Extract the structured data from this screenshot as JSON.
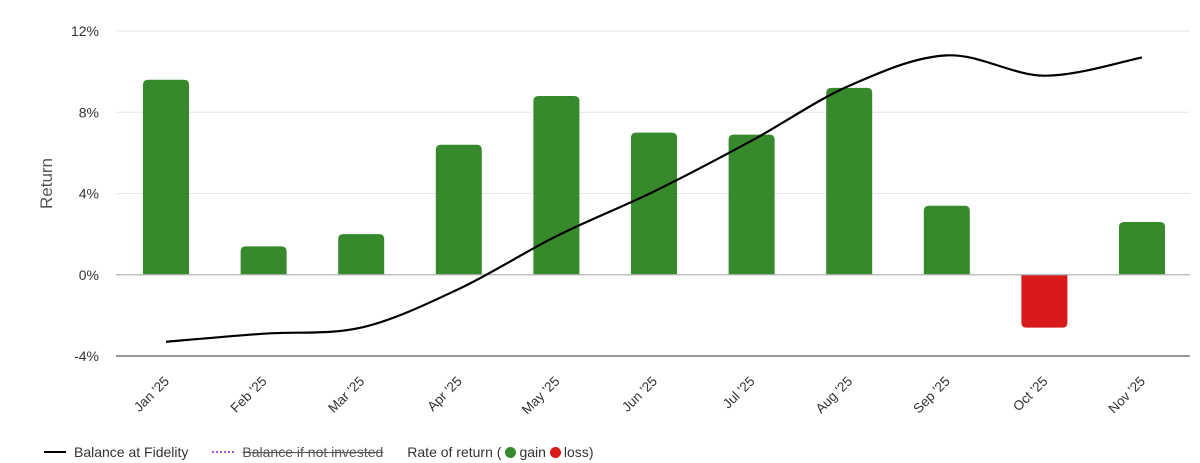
{
  "chart_data": {
    "type": "bar",
    "categories": [
      "Jan '25",
      "Feb '25",
      "Mar '25",
      "Apr '25",
      "May '25",
      "Jun '25",
      "Jul '25",
      "Aug '25",
      "Sep '25",
      "Oct '25",
      "Nov '25"
    ],
    "series": [
      {
        "name": "Rate of return",
        "values": [
          9.6,
          1.4,
          2.0,
          6.4,
          8.8,
          7.0,
          6.9,
          9.2,
          3.4,
          -2.6,
          2.6
        ]
      }
    ],
    "balance_line": {
      "name": "Balance at Fidelity",
      "values": [
        -3.3,
        -2.9,
        -2.6,
        -0.7,
        1.9,
        4.1,
        6.6,
        9.3,
        10.8,
        9.8,
        10.7
      ]
    },
    "ylabel": "Return",
    "ylim": [
      -4,
      12
    ],
    "yticks": [
      "-4%",
      "0%",
      "4%",
      "8%",
      "12%"
    ],
    "ytick_values": [
      -4,
      0,
      4,
      8,
      12
    ],
    "grid": true,
    "legend_position": "bottom-left",
    "colors": {
      "gain": "#368a2b",
      "loss": "#d81a1a",
      "balance": "#000000",
      "not_invested": "#a259d9"
    }
  },
  "legend": {
    "balance_label": "Balance at Fidelity",
    "not_invested_label": "Balance if not invested",
    "rate_prefix": "Rate of return (",
    "gain_label": "gain",
    "loss_label": "loss",
    "rate_suffix": ")"
  }
}
